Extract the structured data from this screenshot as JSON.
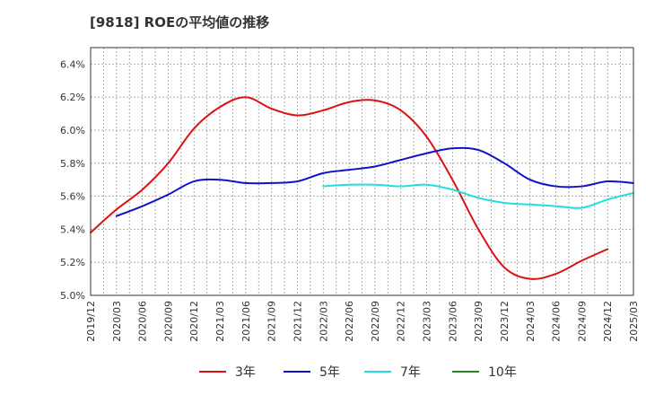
{
  "chart_data": {
    "type": "line",
    "title": "[9818]  ROEの平均値の推移",
    "xlabel": "",
    "ylabel": "",
    "ylim": [
      5.0,
      6.5
    ],
    "y_ticks": [
      "5.0%",
      "5.2%",
      "5.4%",
      "5.6%",
      "5.8%",
      "6.0%",
      "6.2%",
      "6.4%"
    ],
    "y_tick_values": [
      5.0,
      5.2,
      5.4,
      5.6,
      5.8,
      6.0,
      6.2,
      6.4
    ],
    "x_ticks": [
      "2019/12",
      "2020/03",
      "2020/06",
      "2020/09",
      "2020/12",
      "2021/03",
      "2021/06",
      "2021/09",
      "2021/12",
      "2022/03",
      "2022/06",
      "2022/09",
      "2022/12",
      "2023/03",
      "2023/06",
      "2023/09",
      "2023/12",
      "2024/03",
      "2024/06",
      "2024/09",
      "2024/12",
      "2025/03"
    ],
    "x_range_quarters": [
      0,
      21
    ],
    "grid": true,
    "legend_position": "bottom",
    "series": [
      {
        "name": "3年",
        "color": "#dd1111",
        "start_quarter": 0,
        "values": [
          5.38,
          5.52,
          5.64,
          5.8,
          6.01,
          6.14,
          6.2,
          6.13,
          6.09,
          6.12,
          6.17,
          6.18,
          6.12,
          5.96,
          5.7,
          5.4,
          5.17,
          5.1,
          5.13,
          5.21,
          5.28
        ]
      },
      {
        "name": "5年",
        "color": "#1111cc",
        "start_quarter": 1,
        "values": [
          5.48,
          5.54,
          5.61,
          5.69,
          5.7,
          5.68,
          5.68,
          5.69,
          5.74,
          5.76,
          5.78,
          5.82,
          5.86,
          5.89,
          5.88,
          5.8,
          5.7,
          5.66,
          5.66,
          5.69,
          5.68
        ]
      },
      {
        "name": "7年",
        "color": "#22dddd",
        "start_quarter": 9,
        "values": [
          5.66,
          5.67,
          5.67,
          5.66,
          5.67,
          5.64,
          5.59,
          5.56,
          5.55,
          5.54,
          5.53,
          5.58,
          5.62
        ]
      },
      {
        "name": "10年",
        "color": "#228822",
        "start_quarter": 0,
        "values": []
      }
    ]
  }
}
